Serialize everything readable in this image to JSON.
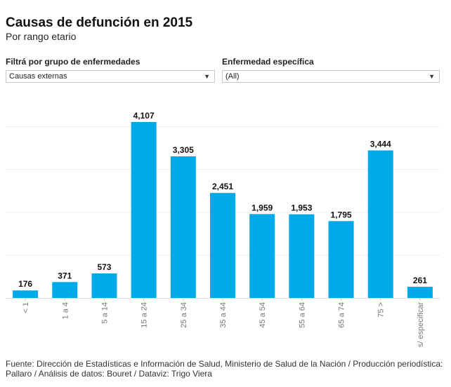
{
  "header": {
    "title": "Causas de defunción en 2015",
    "subtitle": "Por rango etario"
  },
  "filters": [
    {
      "label": "Filtrá por grupo de enfermedades",
      "value": "Causas externas",
      "icon": "chevron-down-icon"
    },
    {
      "label": "Enfermedad específica",
      "value": "(All)",
      "icon": "chevron-down-icon"
    }
  ],
  "colors": {
    "bar": "#00a9e8",
    "grid": "#eeeeee",
    "tick": "#777777"
  },
  "chart_data": {
    "type": "bar",
    "categories": [
      "< 1",
      "1 a 4",
      "5 a 14",
      "15 a 24",
      "25 a 34",
      "35 a 44",
      "45 a 54",
      "55 a 64",
      "65 a 74",
      "75 >",
      "s/ especificar"
    ],
    "values": [
      176,
      371,
      573,
      4107,
      3305,
      2451,
      1959,
      1953,
      1795,
      3444,
      261
    ],
    "data_labels": [
      "176",
      "371",
      "573",
      "4,107",
      "3,305",
      "2,451",
      "1,959",
      "1,953",
      "1,795",
      "3,444",
      "261"
    ],
    "ylim": [
      0,
      4500
    ],
    "grid": true,
    "legend": "none"
  },
  "footer": {
    "source": "Fuente: Dirección de Estadísticas e Información de Salud, Ministerio de Salud de la Nación / Producción periodística: Pallaro / Análisis de datos: Bouret / Dataviz: Trigo Viera"
  }
}
